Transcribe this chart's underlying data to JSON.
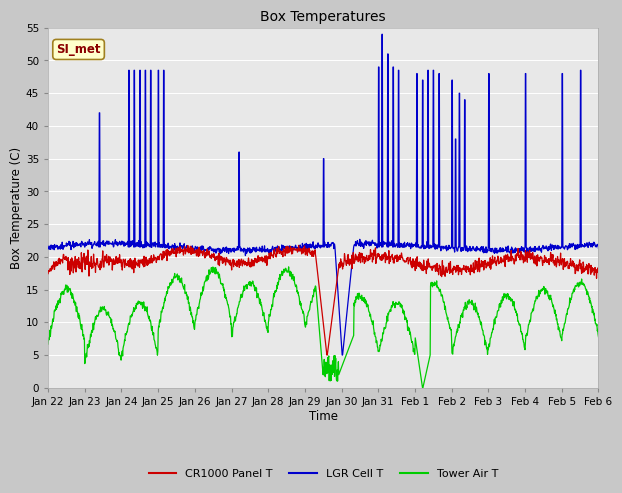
{
  "title": "Box Temperatures",
  "xlabel": "Time",
  "ylabel": "Box Temperature (C)",
  "ylim": [
    0,
    55
  ],
  "fig_bg_color": "#c8c8c8",
  "plot_bg_color": "#e8e8e8",
  "grid_color": "#ffffff",
  "annotation_text": "SI_met",
  "annotation_color": "#8b0000",
  "annotation_bg": "#ffffcc",
  "annotation_border": "#a08020",
  "tick_labels": [
    "Jan 22",
    "Jan 23",
    "Jan 24",
    "Jan 25",
    "Jan 26",
    "Jan 27",
    "Jan 28",
    "Jan 29",
    "Jan 30",
    "Jan 31",
    "Feb 1",
    "Feb 2",
    "Feb 3",
    "Feb 4",
    "Feb 5",
    "Feb 6"
  ],
  "legend_entries": [
    "CR1000 Panel T",
    "LGR Cell T",
    "Tower Air T"
  ],
  "legend_colors": [
    "#cc0000",
    "#0000cc",
    "#00cc00"
  ]
}
